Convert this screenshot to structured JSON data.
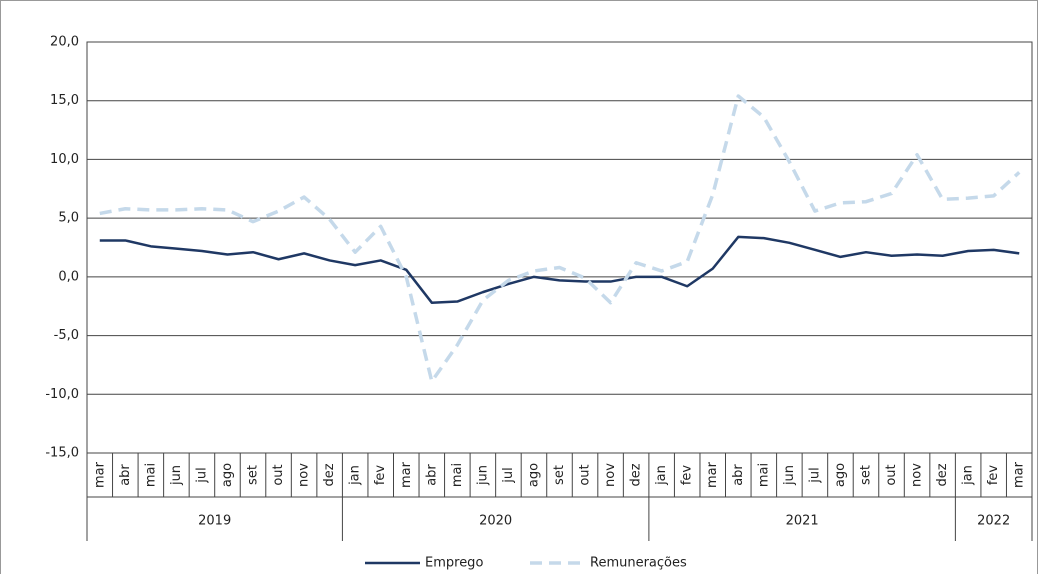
{
  "chart_data": {
    "type": "line",
    "groups": [
      {
        "label": "2019",
        "categories": [
          "mar",
          "abr",
          "mai",
          "jun",
          "jul",
          "ago",
          "set",
          "out",
          "nov",
          "dez"
        ]
      },
      {
        "label": "2020",
        "categories": [
          "jan",
          "fev",
          "mar",
          "abr",
          "mai",
          "jun",
          "jul",
          "ago",
          "set",
          "out",
          "nov",
          "dez"
        ]
      },
      {
        "label": "2021",
        "categories": [
          "jan",
          "fev",
          "mar",
          "abr",
          "mai",
          "jun",
          "jul",
          "ago",
          "set",
          "out",
          "nov",
          "dez"
        ]
      },
      {
        "label": "2022",
        "categories": [
          "jan",
          "fev",
          "mar"
        ]
      }
    ],
    "series": [
      {
        "name": "Emprego",
        "color": "#1f3864",
        "dashed": false,
        "values": [
          3.1,
          3.1,
          2.6,
          2.4,
          2.2,
          1.9,
          2.1,
          1.5,
          2.0,
          1.4,
          1.0,
          1.4,
          0.6,
          -2.2,
          -2.1,
          -1.3,
          -0.6,
          0.0,
          -0.3,
          -0.4,
          -0.4,
          0.0,
          0.0,
          -0.8,
          0.7,
          3.4,
          3.3,
          2.9,
          2.3,
          1.7,
          2.1,
          1.8,
          1.9,
          1.8,
          2.2,
          2.3,
          2.0
        ]
      },
      {
        "name": "Remunerações",
        "color": "#c5d9ea",
        "dashed": true,
        "values": [
          5.4,
          5.8,
          5.7,
          5.7,
          5.8,
          5.7,
          4.7,
          5.6,
          6.8,
          4.9,
          2.1,
          4.3,
          0.0,
          -8.9,
          -5.8,
          -2.0,
          -0.3,
          0.5,
          0.8,
          -0.1,
          -2.2,
          1.2,
          0.5,
          1.3,
          7.0,
          15.4,
          13.6,
          9.8,
          5.6,
          6.3,
          6.4,
          7.1,
          10.4,
          6.6,
          6.7,
          6.9,
          8.9
        ]
      }
    ],
    "ylim": [
      -15,
      20
    ],
    "yticks": [
      {
        "value": -15,
        "label": "-15,0"
      },
      {
        "value": -10,
        "label": "-10,0"
      },
      {
        "value": -5,
        "label": "-5,0"
      },
      {
        "value": 0,
        "label": "0,0"
      },
      {
        "value": 5,
        "label": "5,0"
      },
      {
        "value": 10,
        "label": "10,0"
      },
      {
        "value": 15,
        "label": "15,0"
      },
      {
        "value": 20,
        "label": "20,0"
      }
    ],
    "grid": true,
    "legend": "bottom"
  }
}
